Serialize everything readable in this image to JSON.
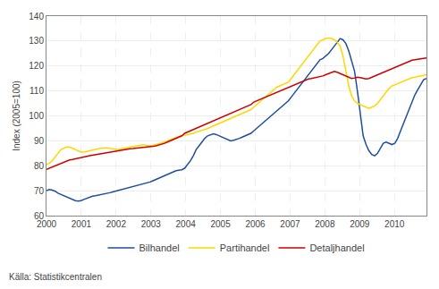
{
  "chart_data": {
    "type": "line",
    "ylabel": "Index (2005=100)",
    "annotations": [
      "Källa: Statistikcentralen"
    ],
    "xlim": [
      2000.0,
      2010.92
    ],
    "ylim": [
      60,
      140
    ],
    "yticks": [
      60,
      70,
      80,
      90,
      100,
      110,
      120,
      130,
      140
    ],
    "xticks": [
      2000,
      2001,
      2002,
      2003,
      2004,
      2005,
      2006,
      2007,
      2008,
      2009,
      2010
    ],
    "grid": true,
    "legend": "bottom",
    "x": [
      2000,
      2000.082727,
      2000.165455,
      2000.248182,
      2000.330909,
      2000.413636,
      2000.496364,
      2000.579091,
      2000.661818,
      2000.744545,
      2000.827273,
      2000.91,
      2000.992727,
      2001.075455,
      2001.158182,
      2001.240909,
      2001.323636,
      2001.406364,
      2001.489091,
      2001.571818,
      2001.654545,
      2001.737273,
      2001.82,
      2001.902727,
      2001.985455,
      2002.068182,
      2002.150909,
      2002.233636,
      2002.316364,
      2002.399091,
      2002.481818,
      2002.564545,
      2002.647273,
      2002.73,
      2002.812727,
      2002.895455,
      2002.978182,
      2003.060909,
      2003.143636,
      2003.226364,
      2003.309091,
      2003.391818,
      2003.474545,
      2003.557273,
      2003.64,
      2003.722727,
      2003.805455,
      2003.888182,
      2003.970909,
      2004.053636,
      2004.136364,
      2004.219091,
      2004.301818,
      2004.384545,
      2004.467273,
      2004.55,
      2004.632727,
      2004.715455,
      2004.798182,
      2004.880909,
      2004.963636,
      2005.046364,
      2005.129091,
      2005.211818,
      2005.294545,
      2005.377273,
      2005.46,
      2005.542727,
      2005.625455,
      2005.708182,
      2005.790909,
      2005.873636,
      2005.956364,
      2006.039091,
      2006.121818,
      2006.204545,
      2006.287273,
      2006.37,
      2006.452727,
      2006.535455,
      2006.618182,
      2006.700909,
      2006.783636,
      2006.866364,
      2006.949091,
      2007.031818,
      2007.114545,
      2007.197273,
      2007.28,
      2007.362727,
      2007.445455,
      2007.528182,
      2007.610909,
      2007.693636,
      2007.776364,
      2007.859091,
      2007.941818,
      2008.024545,
      2008.107273,
      2008.19,
      2008.272727,
      2008.355455,
      2008.438182,
      2008.520909,
      2008.603636,
      2008.686364,
      2008.769091,
      2008.851818,
      2008.934545,
      2009.017273,
      2009.1,
      2009.182727,
      2009.265455,
      2009.348182,
      2009.430909,
      2009.513636,
      2009.596364,
      2009.679091,
      2009.761818,
      2009.844545,
      2009.927273,
      2010.01,
      2010.092727,
      2010.175455,
      2010.258182,
      2010.340909,
      2010.423636,
      2010.506364,
      2010.589091,
      2010.671818,
      2010.754545,
      2010.837273,
      2010.92
    ],
    "series": [
      {
        "name": "Bilhandel",
        "color": "#1F4E9C",
        "values": [
          70.0,
          70.5,
          70.2,
          69.8,
          69.0,
          68.5,
          68.0,
          67.5,
          67.0,
          66.5,
          66.0,
          65.8,
          66.0,
          66.5,
          67.0,
          67.5,
          67.8,
          68.0,
          68.2,
          68.5,
          68.8,
          69.0,
          69.2,
          69.5,
          69.8,
          70.0,
          70.3,
          70.6,
          70.9,
          71.2,
          71.5,
          71.8,
          72.2,
          72.5,
          72.8,
          73.2,
          73.5,
          74.0,
          74.5,
          75.0,
          75.5,
          76.0,
          76.5,
          77.0,
          77.5,
          78.0,
          78.2,
          78.4,
          79.0,
          80.5,
          82.0,
          84.0,
          86.5,
          88.0,
          89.5,
          91.0,
          92.0,
          92.5,
          92.8,
          92.5,
          92.0,
          91.5,
          91.0,
          90.5,
          90.0,
          90.2,
          90.5,
          91.0,
          91.5,
          92.0,
          92.5,
          93.0,
          94.0,
          95.0,
          96.0,
          97.0,
          98.0,
          99.0,
          100.0,
          101.0,
          102.0,
          103.0,
          104.0,
          105.0,
          106.0,
          107.5,
          109.0,
          110.5,
          112.0,
          113.5,
          115.0,
          116.5,
          118.0,
          119.5,
          121.0,
          122.5,
          123.0,
          124.0,
          125.0,
          126.5,
          128.0,
          129.5,
          131.0,
          130.5,
          129.0,
          126.0,
          122.0,
          118.0,
          110.0,
          100.0,
          92.0,
          88.5,
          86.0,
          84.5,
          84.0,
          85.0,
          87.0,
          89.0,
          89.5,
          89.0,
          88.5,
          89.0,
          91.0,
          94.0,
          97.0,
          100.0,
          103.0,
          106.0,
          108.5,
          110.5,
          112.5,
          114.5,
          115.0
        ]
      },
      {
        "name": "Partihandel",
        "color": "#FFD700",
        "values": [
          80.5,
          81.0,
          82.0,
          83.5,
          85.0,
          86.5,
          87.0,
          87.5,
          87.5,
          87.0,
          86.5,
          86.0,
          85.5,
          85.5,
          85.8,
          86.0,
          86.2,
          86.5,
          86.8,
          87.0,
          87.2,
          87.2,
          87.0,
          86.8,
          86.5,
          86.5,
          86.8,
          87.0,
          87.2,
          87.5,
          87.8,
          88.0,
          88.2,
          88.3,
          88.3,
          88.2,
          88.0,
          88.2,
          88.5,
          88.8,
          89.0,
          89.5,
          90.0,
          90.5,
          91.0,
          91.5,
          91.8,
          92.0,
          92.2,
          92.5,
          92.8,
          93.0,
          93.5,
          93.8,
          94.0,
          94.5,
          95.0,
          95.5,
          96.0,
          96.5,
          97.0,
          97.5,
          98.0,
          98.5,
          99.0,
          99.5,
          100.0,
          100.5,
          101.0,
          101.5,
          102.0,
          102.5,
          103.5,
          104.5,
          105.5,
          106.5,
          107.5,
          108.5,
          109.5,
          110.5,
          111.5,
          112.0,
          112.5,
          113.0,
          113.5,
          115.0,
          116.5,
          118.0,
          119.5,
          121.0,
          122.5,
          124.0,
          125.5,
          127.0,
          128.5,
          130.0,
          130.5,
          131.0,
          131.2,
          131.0,
          130.5,
          129.5,
          128.0,
          124.0,
          118.0,
          112.0,
          108.0,
          106.0,
          105.0,
          104.5,
          104.0,
          103.5,
          103.0,
          103.5,
          104.0,
          105.0,
          106.5,
          108.0,
          109.5,
          111.0,
          112.0,
          112.5,
          113.0,
          113.5,
          114.0,
          114.5,
          115.0,
          115.3,
          115.5,
          115.8,
          116.0,
          116.2,
          116.5
        ]
      },
      {
        "name": "Detaljhandel",
        "color": "#CC0000",
        "values": [
          78.5,
          79.0,
          79.5,
          80.0,
          80.5,
          81.0,
          81.5,
          82.0,
          82.3,
          82.5,
          82.8,
          83.0,
          83.2,
          83.5,
          83.8,
          84.0,
          84.2,
          84.5,
          84.8,
          85.0,
          85.2,
          85.3,
          85.5,
          85.8,
          86.0,
          86.2,
          86.4,
          86.5,
          86.7,
          86.8,
          86.9,
          87.0,
          87.1,
          87.2,
          87.3,
          87.4,
          87.5,
          87.8,
          88.0,
          88.3,
          88.5,
          89.0,
          89.5,
          90.0,
          90.5,
          91.0,
          91.5,
          92.0,
          93.0,
          93.5,
          94.0,
          94.5,
          95.0,
          95.5,
          96.0,
          96.5,
          97.0,
          97.5,
          98.0,
          98.5,
          99.0,
          99.5,
          100.0,
          100.5,
          101.0,
          101.5,
          102.0,
          102.5,
          103.0,
          103.5,
          104.0,
          104.5,
          105.5,
          106.0,
          106.5,
          107.0,
          107.5,
          108.0,
          108.5,
          109.0,
          109.5,
          110.0,
          110.5,
          111.0,
          111.5,
          112.0,
          112.5,
          113.0,
          113.5,
          114.0,
          114.5,
          114.8,
          115.0,
          115.2,
          115.5,
          115.8,
          116.0,
          116.5,
          117.0,
          117.5,
          117.8,
          117.5,
          117.0,
          116.5,
          116.0,
          115.5,
          115.0,
          115.2,
          115.5,
          115.3,
          115.0,
          114.8,
          115.0,
          115.5,
          116.0,
          116.5,
          117.0,
          117.5,
          118.0,
          118.5,
          119.0,
          119.5,
          120.0,
          120.5,
          121.0,
          121.5,
          122.0,
          122.3,
          122.5,
          122.7,
          122.8,
          123.0,
          123.2
        ]
      }
    ]
  }
}
